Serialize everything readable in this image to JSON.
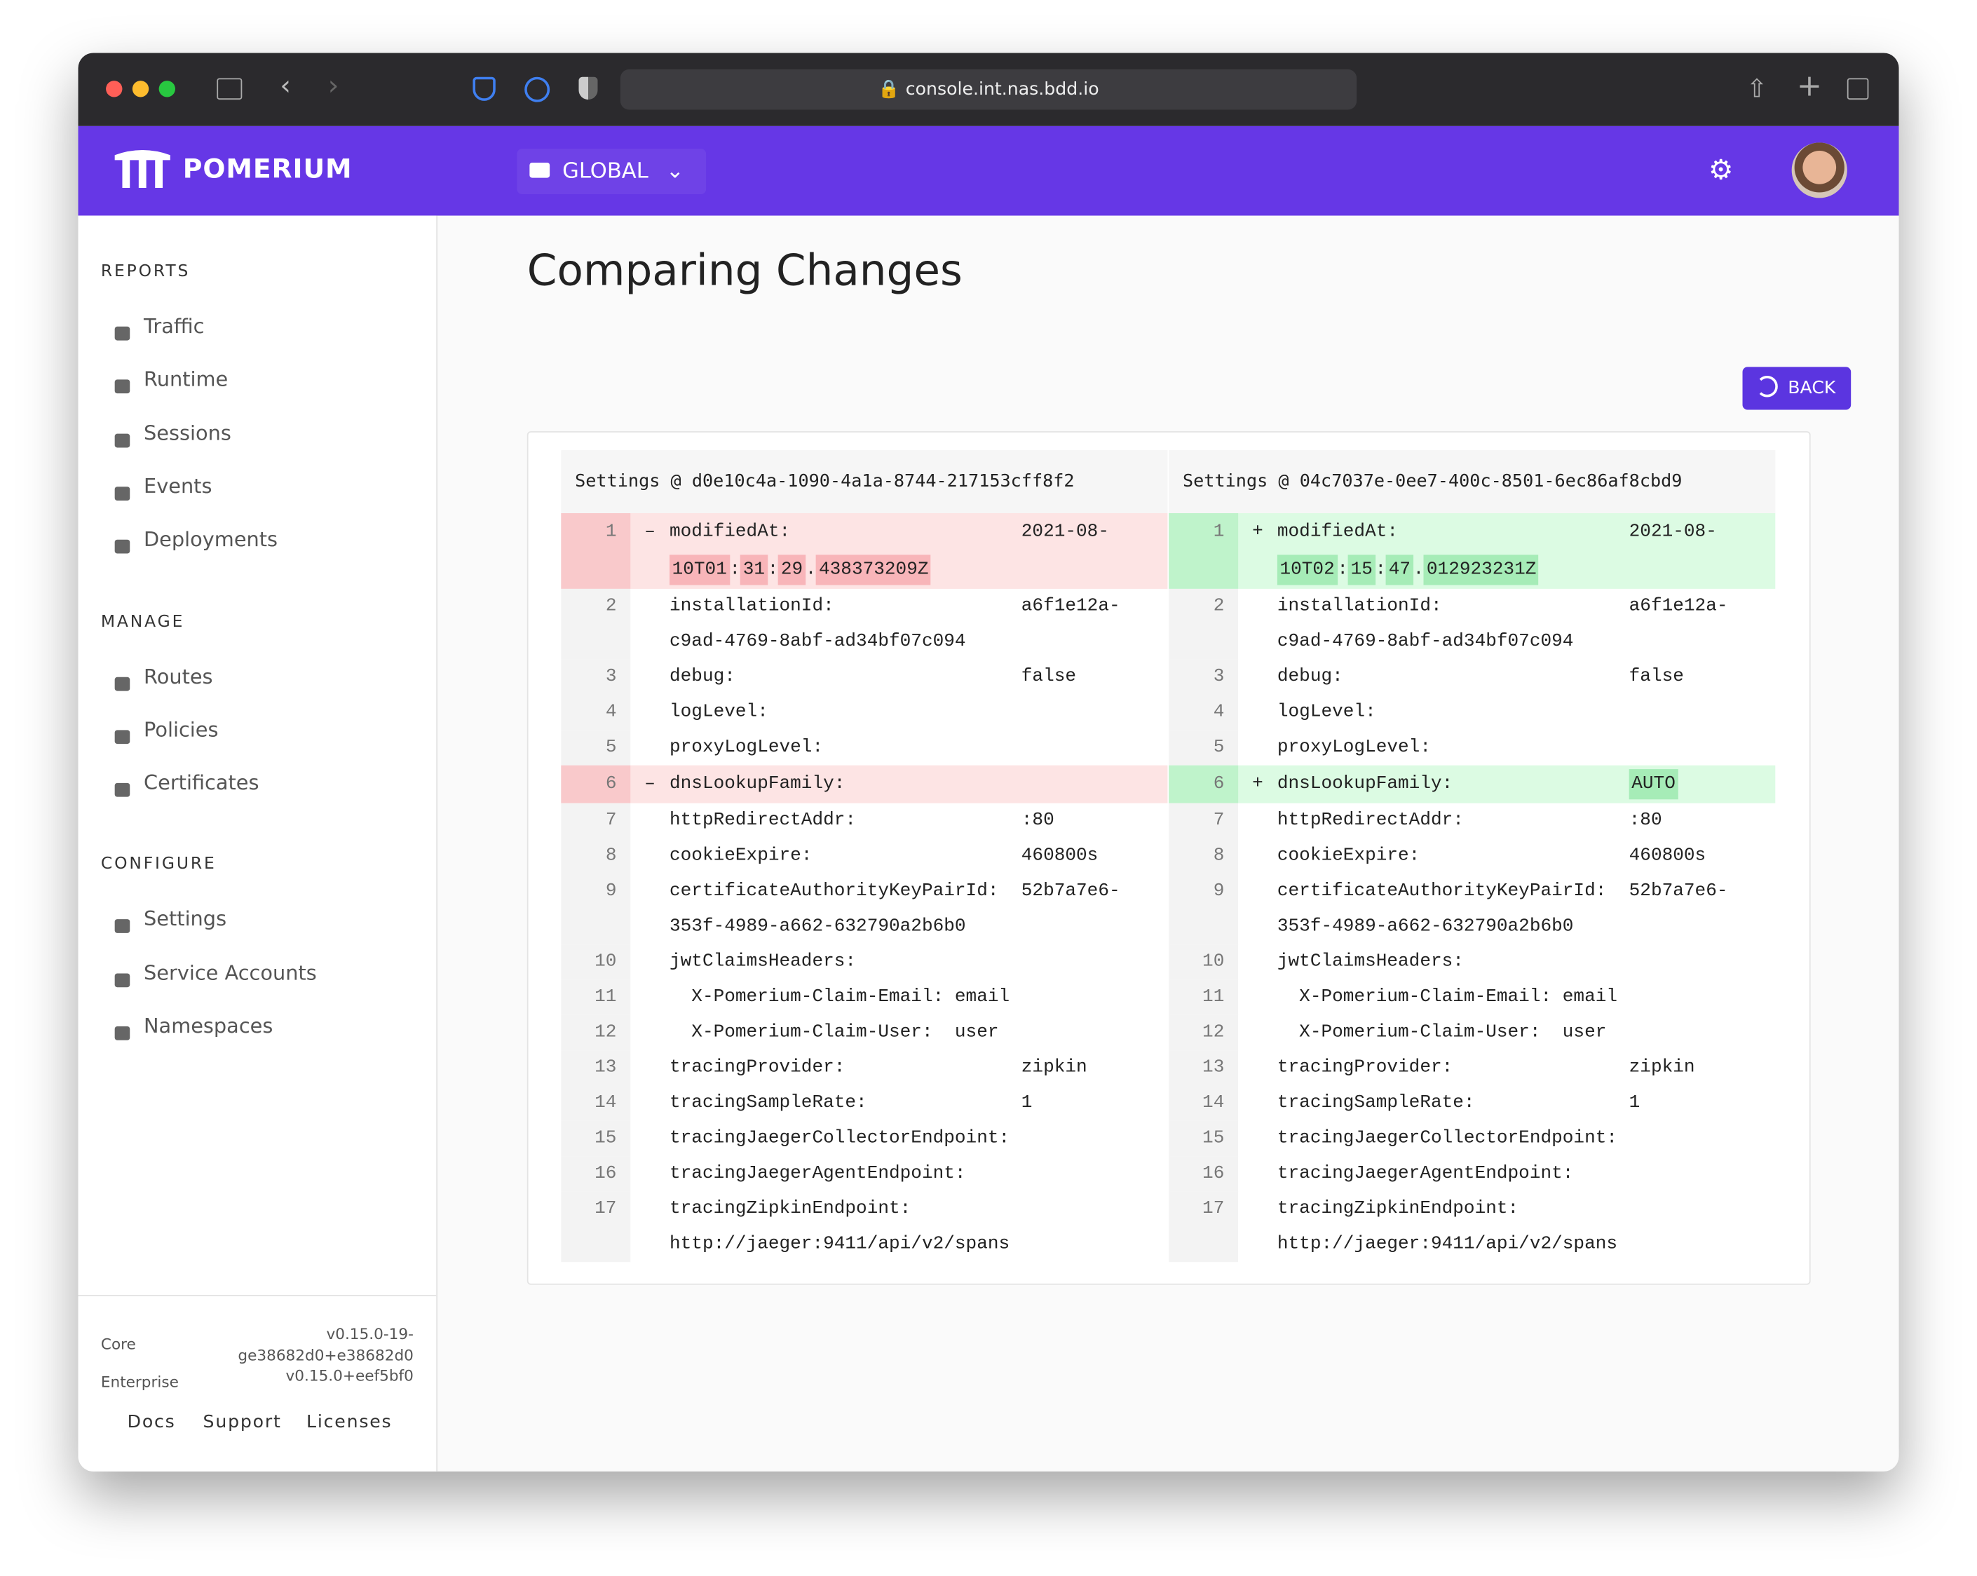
{
  "browser": {
    "url": "console.int.nas.bdd.io"
  },
  "header": {
    "brand": "POMERIUM",
    "scope": "GLOBAL"
  },
  "sidebar": {
    "sections": [
      {
        "title": "REPORTS",
        "items": [
          "Traffic",
          "Runtime",
          "Sessions",
          "Events",
          "Deployments"
        ]
      },
      {
        "title": "MANAGE",
        "items": [
          "Routes",
          "Policies",
          "Certificates"
        ]
      },
      {
        "title": "CONFIGURE",
        "items": [
          "Settings",
          "Service Accounts",
          "Namespaces"
        ]
      }
    ],
    "versions": [
      {
        "label": "Core",
        "value": "v0.15.0-19-ge38682d0+e38682d0"
      },
      {
        "label": "Enterprise",
        "value": "v0.15.0+eef5bf0"
      }
    ],
    "links": [
      "Docs",
      "Support",
      "Licenses"
    ]
  },
  "page": {
    "title": "Comparing Changes",
    "back": "BACK"
  },
  "diff": [
    {
      "title": "Settings @ d0e10c4a-1090-4a1a-8744-217153cff8f2",
      "lines": [
        {
          "num": 1,
          "marker": "–",
          "status": "removed",
          "key": "modifiedAt:",
          "value": [
            {
              "text": "2021-08-"
            },
            {
              "text": "10T01",
              "hl": true
            },
            {
              "text": ":"
            },
            {
              "text": "31",
              "hl": true
            },
            {
              "text": ":"
            },
            {
              "text": "29",
              "hl": true
            },
            {
              "text": "."
            },
            {
              "text": "438373209Z",
              "hl": true
            }
          ]
        },
        {
          "num": 2,
          "key": "installationId:",
          "value": "a6f1e12a-c9ad-4769-8abf-ad34bf07c094"
        },
        {
          "num": 3,
          "key": "debug:",
          "value": "false"
        },
        {
          "num": 4,
          "key": "logLevel:"
        },
        {
          "num": 5,
          "key": "proxyLogLevel:"
        },
        {
          "num": 6,
          "marker": "–",
          "status": "removed",
          "key": "dnsLookupFamily:"
        },
        {
          "num": 7,
          "key": "httpRedirectAddr:",
          "value": ":80"
        },
        {
          "num": 8,
          "key": "cookieExpire:",
          "value": "460800s"
        },
        {
          "num": 9,
          "key": "certificateAuthorityKeyPairId:",
          "value": "52b7a7e6-353f-4989-a662-632790a2b6b0"
        },
        {
          "num": 10,
          "key": "jwtClaimsHeaders:"
        },
        {
          "num": 11,
          "key": "  X-Pomerium-Claim-Email: email"
        },
        {
          "num": 12,
          "key": "  X-Pomerium-Claim-User:  user"
        },
        {
          "num": 13,
          "key": "tracingProvider:",
          "value": "zipkin"
        },
        {
          "num": 14,
          "key": "tracingSampleRate:",
          "value": "1"
        },
        {
          "num": 15,
          "key": "tracingJaegerCollectorEndpoint:"
        },
        {
          "num": 16,
          "key": "tracingJaegerAgentEndpoint:"
        },
        {
          "num": 17,
          "key": "tracingZipkinEndpoint:",
          "value": "http://jaeger:9411/api/v2/spans"
        }
      ]
    },
    {
      "title": "Settings @ 04c7037e-0ee7-400c-8501-6ec86af8cbd9",
      "lines": [
        {
          "num": 1,
          "marker": "+",
          "status": "added",
          "key": "modifiedAt:",
          "value": [
            {
              "text": "2021-08-"
            },
            {
              "text": "10T02",
              "hl": true
            },
            {
              "text": ":"
            },
            {
              "text": "15",
              "hl": true
            },
            {
              "text": ":"
            },
            {
              "text": "47",
              "hl": true
            },
            {
              "text": "."
            },
            {
              "text": "012923231Z",
              "hl": true
            }
          ]
        },
        {
          "num": 2,
          "key": "installationId:",
          "value": "a6f1e12a-c9ad-4769-8abf-ad34bf07c094"
        },
        {
          "num": 3,
          "key": "debug:",
          "value": "false"
        },
        {
          "num": 4,
          "key": "logLevel:"
        },
        {
          "num": 5,
          "key": "proxyLogLevel:"
        },
        {
          "num": 6,
          "marker": "+",
          "status": "added",
          "key": "dnsLookupFamily:",
          "value": [
            {
              "text": "AUTO",
              "hl": true
            }
          ]
        },
        {
          "num": 7,
          "key": "httpRedirectAddr:",
          "value": ":80"
        },
        {
          "num": 8,
          "key": "cookieExpire:",
          "value": "460800s"
        },
        {
          "num": 9,
          "key": "certificateAuthorityKeyPairId:",
          "value": "52b7a7e6-353f-4989-a662-632790a2b6b0"
        },
        {
          "num": 10,
          "key": "jwtClaimsHeaders:"
        },
        {
          "num": 11,
          "key": "  X-Pomerium-Claim-Email: email"
        },
        {
          "num": 12,
          "key": "  X-Pomerium-Claim-User:  user"
        },
        {
          "num": 13,
          "key": "tracingProvider:",
          "value": "zipkin"
        },
        {
          "num": 14,
          "key": "tracingSampleRate:",
          "value": "1"
        },
        {
          "num": 15,
          "key": "tracingJaegerCollectorEndpoint:"
        },
        {
          "num": 16,
          "key": "tracingJaegerAgentEndpoint:"
        },
        {
          "num": 17,
          "key": "tracingZipkinEndpoint:",
          "value": "http://jaeger:9411/api/v2/spans"
        }
      ]
    }
  ]
}
